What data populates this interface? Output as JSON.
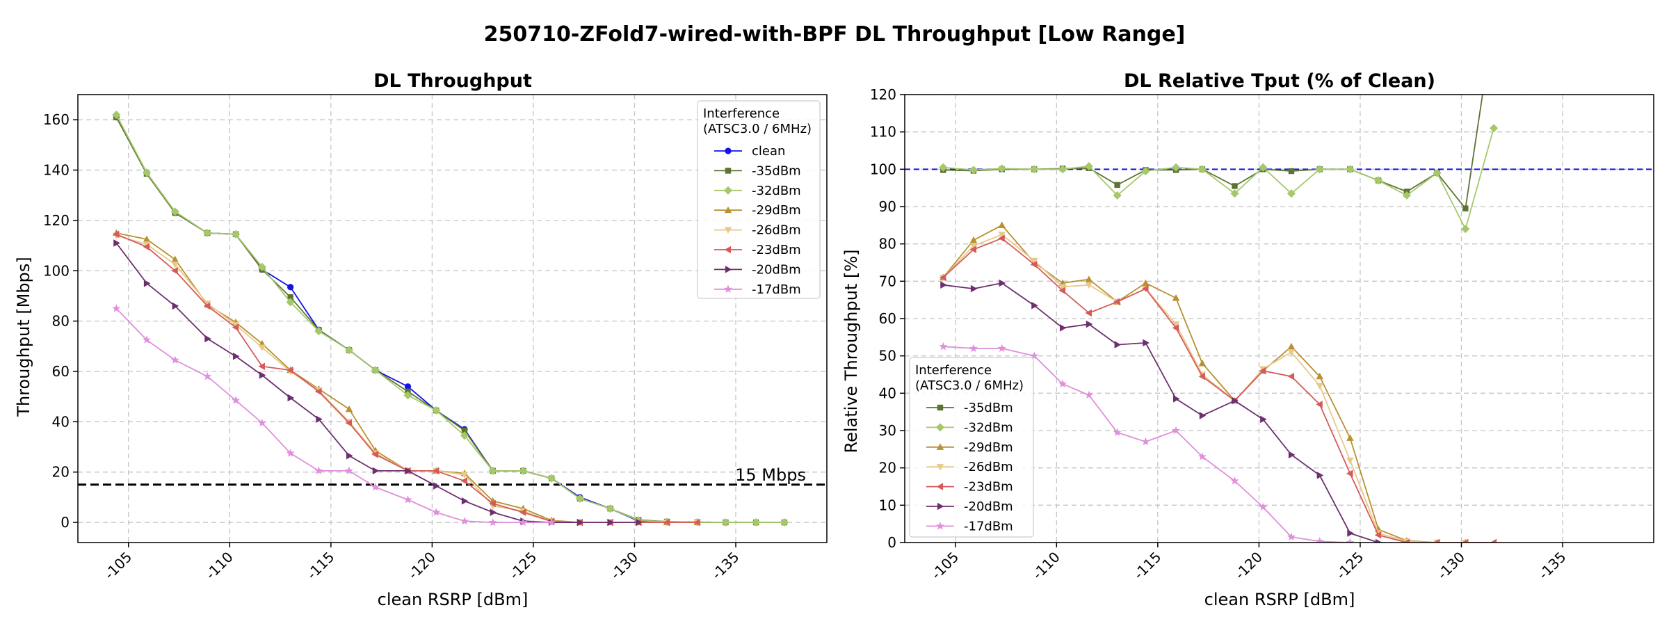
{
  "figure": {
    "title": "250710-ZFold7-wired-with-BPF DL Throughput [Low Range]"
  },
  "colors": {
    "clean": "#1212e6",
    "-35dBm": "#5c7332",
    "-32dBm": "#a5c86a",
    "-29dBm": "#b89130",
    "-26dBm": "#e8c98a",
    "-23dBm": "#d65a5a",
    "-20dBm": "#6d2f6e",
    "-17dBm": "#df8fdb"
  },
  "markers": {
    "clean": "circle",
    "-35dBm": "square",
    "-32dBm": "diamond",
    "-29dBm": "triangle-up",
    "-26dBm": "triangle-down",
    "-23dBm": "triangle-left",
    "-20dBm": "triangle-right",
    "-17dBm": "star"
  },
  "chart_data": [
    {
      "id": "left",
      "type": "line",
      "title": "DL Throughput",
      "xlabel": "clean RSRP [dBm]",
      "ylabel": "Throughput [Mbps]",
      "xlim": [
        -102.5,
        -139.5
      ],
      "ylim": [
        -8,
        170
      ],
      "xticks": [
        -105,
        -110,
        -115,
        -120,
        -125,
        -130,
        -135
      ],
      "xtick_labels": [
        "-105",
        "-110",
        "-115",
        "-120",
        "-125",
        "-130",
        "-135"
      ],
      "yticks": [
        0,
        20,
        40,
        60,
        80,
        100,
        120,
        140,
        160
      ],
      "ytick_labels": [
        "0",
        "20",
        "40",
        "60",
        "80",
        "100",
        "120",
        "140",
        "160"
      ],
      "grid": true,
      "hline": {
        "y": 15,
        "label": "15 Mbps"
      },
      "legend": {
        "title_line1": "Interference",
        "title_line2": "(ATSC3.0 / 6MHz)",
        "position": "top-right"
      },
      "x": [
        -104.4,
        -105.9,
        -107.3,
        -108.9,
        -110.3,
        -111.6,
        -113.0,
        -114.4,
        -115.9,
        -117.2,
        -118.8,
        -120.2,
        -121.6,
        -123.0,
        -124.5,
        -125.9,
        -127.3,
        -128.8,
        -130.2,
        -131.6,
        -133.1,
        -134.5,
        -136.0,
        -137.4
      ],
      "series": [
        {
          "name": "clean",
          "key": "clean",
          "values": [
            161,
            139,
            123,
            115,
            114.5,
            100.5,
            93.5,
            76.5,
            68.5,
            60.5,
            54,
            44.5,
            37,
            20.5,
            20.5,
            17.5,
            10,
            5.5,
            0.5,
            0.2,
            0.1,
            0,
            0,
            0
          ]
        },
        {
          "name": "-35dBm",
          "key": "-35dBm",
          "values": [
            161,
            138.5,
            123,
            115,
            114.5,
            100.5,
            89.5,
            76.5,
            68.5,
            60.5,
            52,
            44.5,
            36.5,
            20.5,
            20.5,
            17.5,
            9.5,
            5.5,
            1,
            0.3,
            0.1,
            0,
            0,
            0
          ]
        },
        {
          "name": "-32dBm",
          "key": "-32dBm",
          "values": [
            162,
            139,
            123.5,
            115,
            114.5,
            101.5,
            87.5,
            76,
            68.5,
            60.5,
            50.5,
            44.5,
            34.5,
            20.5,
            20.5,
            17.5,
            9.5,
            5.5,
            0.8,
            0.2,
            0.1,
            0,
            0,
            0
          ]
        },
        {
          "name": "-29dBm",
          "key": "-29dBm",
          "values": [
            115,
            112.5,
            104.5,
            86.5,
            79.5,
            71,
            60.5,
            53,
            45,
            28.5,
            20.5,
            20.5,
            19.5,
            8.5,
            5.5,
            0.8,
            0,
            0,
            0,
            0,
            0,
            null,
            null,
            null
          ]
        },
        {
          "name": "-26dBm",
          "key": "-26dBm",
          "values": [
            114,
            110.5,
            102.5,
            87,
            78.5,
            69.5,
            60,
            52.5,
            40,
            27.5,
            20.5,
            20.5,
            19,
            6.5,
            4.5,
            0.5,
            0,
            0,
            0,
            0,
            0,
            null,
            null,
            null
          ]
        },
        {
          "name": "-23dBm",
          "key": "-23dBm",
          "values": [
            114.5,
            109.5,
            100,
            86,
            77.5,
            62,
            60.5,
            52,
            39.5,
            27,
            20.5,
            20.5,
            16.5,
            7.5,
            4,
            0.4,
            0,
            0,
            0,
            0,
            0,
            null,
            null,
            null
          ]
        },
        {
          "name": "-20dBm",
          "key": "-20dBm",
          "values": [
            111,
            95,
            86,
            73,
            66,
            58.5,
            49.5,
            41,
            26.5,
            20.5,
            20.5,
            14.5,
            8.5,
            4,
            0.5,
            0,
            0,
            0,
            0,
            null,
            null,
            null,
            null,
            null
          ]
        },
        {
          "name": "-17dBm",
          "key": "-17dBm",
          "values": [
            85,
            72.5,
            64.5,
            58,
            48.5,
            39.5,
            27.5,
            20.5,
            20.5,
            14,
            9,
            4,
            0.5,
            0,
            0,
            0,
            null,
            null,
            null,
            null,
            null,
            null,
            null,
            null
          ]
        }
      ]
    },
    {
      "id": "right",
      "type": "line",
      "title": "DL Relative Tput (% of Clean)",
      "xlabel": "clean RSRP [dBm]",
      "ylabel": "Relative Throughput [%]",
      "xlim": [
        -102.5,
        -139.5
      ],
      "ylim": [
        0,
        120
      ],
      "xticks": [
        -105,
        -110,
        -115,
        -120,
        -125,
        -130,
        -135
      ],
      "xtick_labels": [
        "-105",
        "-110",
        "-115",
        "-120",
        "-125",
        "-130",
        "-135"
      ],
      "yticks": [
        0,
        10,
        20,
        30,
        40,
        50,
        60,
        70,
        80,
        90,
        100,
        110,
        120
      ],
      "ytick_labels": [
        "0",
        "10",
        "20",
        "30",
        "40",
        "50",
        "60",
        "70",
        "80",
        "90",
        "100",
        "110",
        "120"
      ],
      "grid": true,
      "hline": {
        "y": 100
      },
      "legend": {
        "title_line1": "Interference",
        "title_line2": "(ATSC3.0 / 6MHz)",
        "position": "lower-left"
      },
      "x": [
        -104.4,
        -105.9,
        -107.3,
        -108.9,
        -110.3,
        -111.6,
        -113.0,
        -114.4,
        -115.9,
        -117.2,
        -118.8,
        -120.2,
        -121.6,
        -123.0,
        -124.5,
        -125.9,
        -127.3,
        -128.8,
        -130.2,
        -131.6
      ],
      "series": [
        {
          "name": "-35dBm",
          "key": "-35dBm",
          "values": [
            99.8,
            99.6,
            100,
            100,
            100.2,
            100.3,
            95.8,
            99.8,
            99.8,
            100,
            95.5,
            100,
            99.5,
            100,
            100,
            97,
            94,
            99,
            89.5,
            140
          ]
        },
        {
          "name": "-32dBm",
          "key": "-32dBm",
          "values": [
            100.5,
            99.8,
            100.2,
            100,
            100,
            100.8,
            93,
            99.5,
            100.5,
            100,
            93.5,
            100.5,
            93.5,
            100,
            100,
            97,
            93,
            99,
            84,
            111
          ]
        },
        {
          "name": "-29dBm",
          "key": "-29dBm",
          "values": [
            71,
            81,
            85,
            75,
            69.5,
            70.5,
            64.5,
            69.5,
            65.5,
            48,
            38,
            46,
            52.5,
            44.5,
            28,
            3.5,
            0.5,
            0,
            0,
            null
          ]
        },
        {
          "name": "-26dBm",
          "key": "-26dBm",
          "values": [
            71,
            79.5,
            82.5,
            75.5,
            68.5,
            69,
            64.5,
            68,
            58.5,
            45,
            38,
            46.5,
            51,
            42,
            22,
            2.5,
            0.3,
            0,
            0,
            null
          ]
        },
        {
          "name": "-23dBm",
          "key": "-23dBm",
          "values": [
            71,
            78.5,
            81.5,
            74.5,
            67.5,
            61.5,
            64.5,
            68,
            57.5,
            44.5,
            38,
            46,
            44.5,
            37,
            18.5,
            2,
            0,
            0,
            0,
            0
          ]
        },
        {
          "name": "-20dBm",
          "key": "-20dBm",
          "values": [
            69,
            68,
            69.5,
            63.5,
            57.5,
            58.5,
            53,
            53.5,
            38.5,
            34,
            38,
            33,
            23.5,
            18,
            2.5,
            0,
            null,
            null,
            null,
            null
          ]
        },
        {
          "name": "-17dBm",
          "key": "-17dBm",
          "values": [
            52.5,
            52,
            52,
            50,
            42.5,
            39.5,
            29.5,
            27,
            30,
            23,
            16.5,
            9.5,
            1.5,
            0.3,
            0,
            null,
            null,
            null,
            null,
            null
          ]
        }
      ]
    }
  ]
}
